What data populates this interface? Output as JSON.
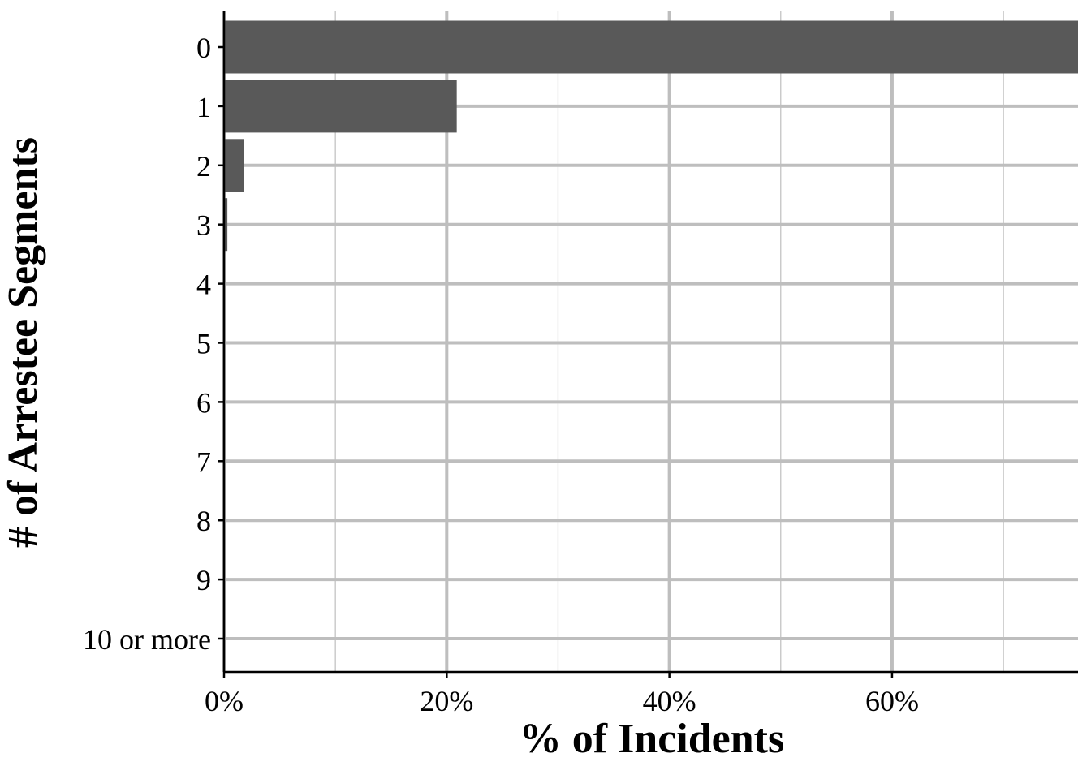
{
  "chart_data": {
    "type": "bar",
    "orientation": "horizontal",
    "title": "",
    "xlabel": "% of Incidents",
    "ylabel": "# of Arrestee Segments",
    "categories": [
      "0",
      "1",
      "2",
      "3",
      "4",
      "5",
      "6",
      "7",
      "8",
      "9",
      "10 or more"
    ],
    "values": [
      76.7,
      20.9,
      1.8,
      0.3,
      0.05,
      0.02,
      0.01,
      0.005,
      0.003,
      0.002,
      0.002
    ],
    "xlim": [
      0,
      76.7
    ],
    "xticks": [
      0,
      20,
      40,
      60
    ],
    "xtick_labels": [
      "0%",
      "20%",
      "40%",
      "60%"
    ],
    "grid": true,
    "legend": "none",
    "colors": {
      "bar": "#595959",
      "grid": "#bebebe",
      "axis": "#000000"
    }
  }
}
